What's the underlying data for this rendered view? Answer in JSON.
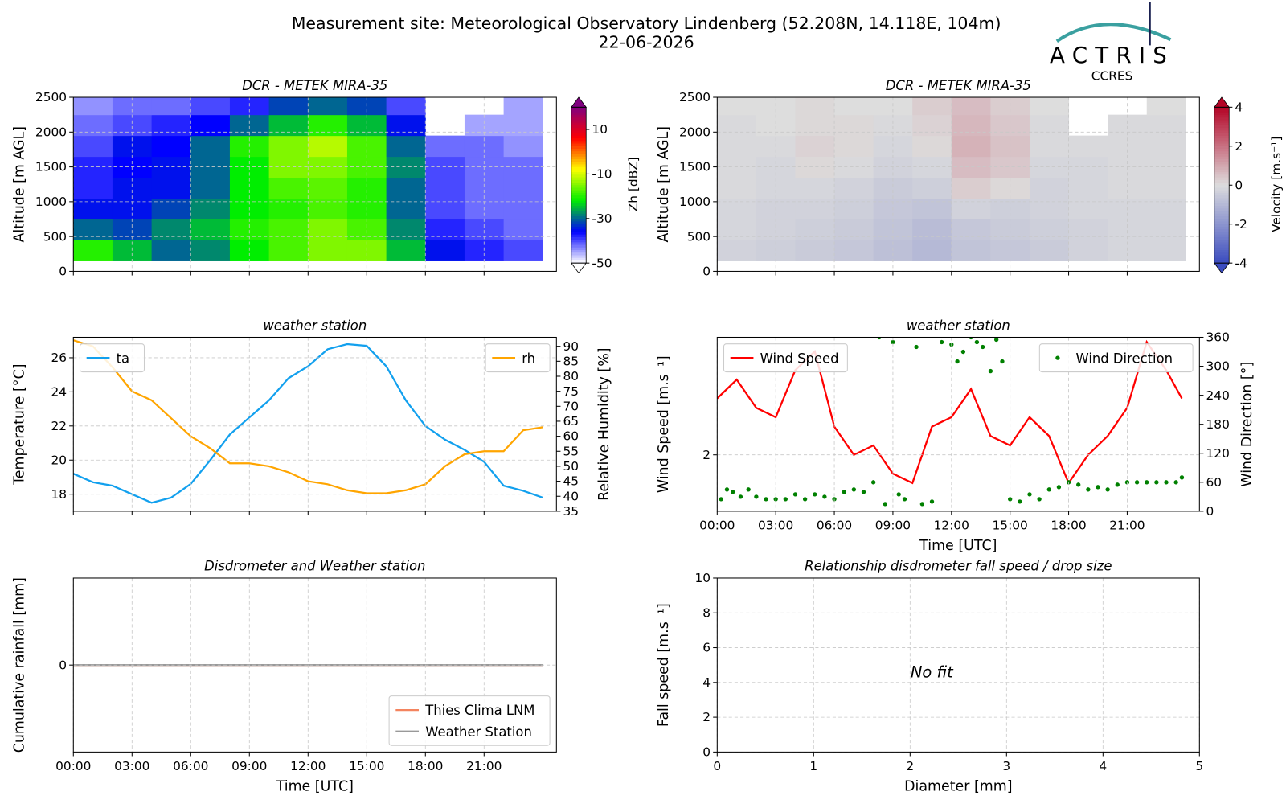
{
  "header": {
    "title": "Measurement site: Meteorological Observatory Lindenberg (52.208N, 14.118E, 104m)",
    "date": "22-06-2026",
    "logo_name": "ACTRIS",
    "logo_sub": "CCRES"
  },
  "chart_data": [
    {
      "type": "heatmap",
      "title": "DCR - METEK MIRA-35",
      "y_label": "Altitude [m AGL]",
      "xlim": [
        0,
        24.7
      ],
      "xticks": [
        0,
        3,
        6,
        9,
        12,
        15,
        18,
        21
      ],
      "xtick_labels": false,
      "ylim": [
        0,
        2500
      ],
      "yticks": [
        0,
        500,
        1000,
        1500,
        2000,
        2500
      ],
      "grid": true,
      "x_edges": [
        0,
        2,
        4,
        6,
        8,
        10,
        12,
        14,
        16,
        18,
        20,
        22,
        24
      ],
      "y_edges": [
        150,
        450,
        750,
        1050,
        1350,
        1650,
        1950,
        2250,
        2500
      ],
      "z": [
        [
          -20,
          -25,
          -30,
          -28,
          -22,
          -18,
          -15,
          -15,
          -25,
          -35,
          -38,
          -40
        ],
        [
          -30,
          -32,
          -28,
          -25,
          -20,
          -18,
          -15,
          -18,
          -28,
          -38,
          -40,
          -42
        ],
        [
          -35,
          -35,
          -32,
          -28,
          -22,
          -20,
          -18,
          -20,
          -30,
          -40,
          -42,
          -42
        ],
        [
          -38,
          -35,
          -35,
          -30,
          -22,
          -18,
          -17,
          -20,
          -30,
          -40,
          -42,
          -42
        ],
        [
          -38,
          -36,
          -35,
          -30,
          -22,
          -15,
          -15,
          -18,
          -28,
          -40,
          -42,
          -42
        ],
        [
          -40,
          -35,
          -36,
          -30,
          -20,
          -15,
          -12,
          -18,
          -30,
          -42,
          -42,
          -44
        ],
        [
          -42,
          -40,
          -38,
          -36,
          -30,
          -25,
          -20,
          -25,
          -35,
          null,
          -45,
          -45
        ],
        [
          -44,
          -42,
          -42,
          -40,
          -38,
          -32,
          -30,
          -32,
          -40,
          null,
          null,
          -45
        ]
      ],
      "clim": [
        -50,
        20
      ],
      "cticks": [
        -50,
        -30,
        -10,
        10
      ],
      "colorbar_label": "Zh [dBZ]",
      "colormap": [
        "#ffffff",
        "#0000ff",
        "#00ee00",
        "#ffff00",
        "#ff0000",
        "#800080"
      ]
    },
    {
      "type": "heatmap",
      "title": "DCR - METEK MIRA-35",
      "y_label": "Altitude [m AGL]",
      "xlim": [
        0,
        24.7
      ],
      "xticks": [
        0,
        3,
        6,
        9,
        12,
        15,
        18,
        21
      ],
      "xtick_labels": false,
      "ylim": [
        0,
        2500
      ],
      "yticks": [
        0,
        500,
        1000,
        1500,
        2000,
        2500
      ],
      "grid": true,
      "x_edges": [
        0,
        2,
        4,
        6,
        8,
        10,
        12,
        14,
        16,
        18,
        20,
        22,
        24
      ],
      "y_edges": [
        150,
        450,
        750,
        1050,
        1350,
        1650,
        1950,
        2250,
        2500
      ],
      "z": [
        [
          -0.3,
          -0.4,
          -0.5,
          -0.6,
          -0.8,
          -1.0,
          -0.7,
          -0.6,
          -0.5,
          -0.3,
          -0.2,
          -0.2
        ],
        [
          -0.2,
          -0.3,
          -0.4,
          -0.5,
          -0.7,
          -0.9,
          -0.6,
          -0.5,
          -0.4,
          -0.3,
          -0.2,
          -0.2
        ],
        [
          -0.2,
          -0.3,
          -0.3,
          -0.4,
          -0.6,
          -0.7,
          -0.3,
          -0.4,
          -0.3,
          -0.2,
          -0.2,
          -0.2
        ],
        [
          -0.1,
          -0.2,
          -0.2,
          -0.3,
          -0.5,
          -0.4,
          0.3,
          0.1,
          -0.3,
          -0.2,
          -0.1,
          -0.1
        ],
        [
          -0.1,
          -0.2,
          0.1,
          -0.1,
          -0.3,
          -0.2,
          0.6,
          0.4,
          -0.2,
          -0.2,
          -0.1,
          -0.1
        ],
        [
          -0.1,
          -0.1,
          0.2,
          0.1,
          -0.2,
          0.1,
          0.8,
          0.5,
          -0.1,
          -0.1,
          -0.1,
          -0.1
        ],
        [
          -0.1,
          0.0,
          0.1,
          0.1,
          -0.1,
          0.2,
          0.7,
          0.4,
          -0.1,
          null,
          -0.1,
          -0.1
        ],
        [
          0.0,
          0.0,
          0.1,
          0.0,
          0.0,
          0.3,
          0.6,
          0.3,
          0.0,
          null,
          null,
          0.0
        ]
      ],
      "clim": [
        -4,
        4
      ],
      "cticks": [
        -4,
        -2,
        0,
        2,
        4
      ],
      "colorbar_label": "Velocity [m.s⁻¹]",
      "colormap": [
        "#3b4cc0",
        "#dddddd",
        "#b40426"
      ]
    },
    {
      "type": "line",
      "title": "weather station",
      "y_label": "Temperature [°C]",
      "y2_label": "Relative Humidity [%]",
      "xlim": [
        0,
        24.7
      ],
      "xticks": [
        0,
        3,
        6,
        9,
        12,
        15,
        18,
        21
      ],
      "xtick_labels": false,
      "ylim": [
        17,
        27.2
      ],
      "yticks": [
        18,
        20,
        22,
        24,
        26
      ],
      "y2lim": [
        35,
        93
      ],
      "y2ticks": [
        35,
        40,
        45,
        50,
        55,
        60,
        65,
        70,
        75,
        80,
        85,
        90
      ],
      "grid": true,
      "x": [
        0,
        1,
        2,
        3,
        4,
        5,
        6,
        7,
        8,
        9,
        10,
        11,
        12,
        13,
        14,
        15,
        16,
        17,
        18,
        19,
        20,
        21,
        22,
        23,
        24
      ],
      "series": [
        {
          "name": "ta",
          "color": "#12a0ee",
          "legend": "upper left",
          "values": [
            19.2,
            18.7,
            18.5,
            18.0,
            17.5,
            17.8,
            18.6,
            20.0,
            21.5,
            22.5,
            23.5,
            24.8,
            25.5,
            26.5,
            26.8,
            26.7,
            25.5,
            23.5,
            22.0,
            21.2,
            20.6,
            19.9,
            18.5,
            18.2,
            17.8
          ]
        },
        {
          "name": "rh",
          "color": "#ffa500",
          "axis": "y2",
          "legend": "upper right",
          "values": [
            92,
            90,
            83,
            75,
            72,
            66,
            60,
            56,
            51,
            51,
            50,
            48,
            45,
            44,
            42,
            41,
            41,
            42,
            44,
            50,
            54,
            55,
            55,
            62,
            63
          ]
        }
      ]
    },
    {
      "type": "line",
      "title": "weather station",
      "y_label": "Wind Speed [m.s⁻¹]",
      "y2_label": "Wind Direction [°]",
      "x_label": "Time [UTC]",
      "xlim": [
        0,
        24.7
      ],
      "xticks": [
        {
          "value": 0,
          "label": "00:00"
        },
        {
          "value": 3,
          "label": "03:00"
        },
        {
          "value": 6,
          "label": "06:00"
        },
        {
          "value": 9,
          "label": "09:00"
        },
        {
          "value": 12,
          "label": "12:00"
        },
        {
          "value": 15,
          "label": "15:00"
        },
        {
          "value": 18,
          "label": "18:00"
        },
        {
          "value": 21,
          "label": "21:00"
        }
      ],
      "ylim": [
        1.4,
        3.25
      ],
      "yticks": [
        2
      ],
      "y2lim": [
        0,
        360
      ],
      "y2ticks": [
        0,
        60,
        120,
        180,
        240,
        300,
        360
      ],
      "grid": true,
      "series": [
        {
          "name": "Wind Speed",
          "color": "#ff0000",
          "legend": "upper left",
          "x": [
            0,
            1,
            2,
            3,
            4,
            5,
            6,
            7,
            8,
            9,
            10,
            11,
            12,
            13,
            14,
            15,
            16,
            17,
            18,
            19,
            20,
            21,
            22,
            23,
            23.8
          ],
          "values": [
            2.6,
            2.8,
            2.5,
            2.4,
            2.9,
            3.1,
            2.3,
            2.0,
            2.1,
            1.8,
            1.7,
            2.3,
            2.4,
            2.7,
            2.2,
            2.1,
            2.4,
            2.2,
            1.7,
            2.0,
            2.2,
            2.5,
            3.2,
            2.9,
            2.6
          ]
        },
        {
          "name": "Wind Direction",
          "color": "#008000",
          "axis": "y2",
          "type": "scatter",
          "legend": "upper right",
          "x": [
            0.2,
            0.5,
            0.8,
            1.2,
            1.6,
            2.0,
            2.5,
            3.0,
            3.5,
            4.0,
            4.5,
            5.0,
            5.5,
            6.0,
            6.5,
            7.0,
            7.5,
            8.0,
            8.3,
            8.6,
            9.0,
            9.3,
            9.6,
            10.2,
            10.5,
            11.0,
            11.5,
            12.0,
            12.3,
            12.6,
            13.0,
            13.3,
            13.6,
            14.0,
            14.3,
            14.6,
            15.0,
            15.5,
            16.0,
            16.5,
            17.0,
            17.5,
            18.0,
            18.5,
            19.0,
            19.5,
            20.0,
            20.5,
            21.0,
            21.5,
            22.0,
            22.5,
            23.0,
            23.5,
            23.8
          ],
          "values": [
            25,
            45,
            40,
            30,
            45,
            30,
            25,
            25,
            25,
            35,
            25,
            35,
            30,
            25,
            40,
            45,
            40,
            60,
            360,
            15,
            350,
            35,
            25,
            340,
            15,
            20,
            350,
            345,
            310,
            330,
            360,
            350,
            340,
            290,
            355,
            310,
            25,
            20,
            35,
            25,
            45,
            50,
            60,
            55,
            45,
            50,
            45,
            55,
            60,
            60,
            60,
            60,
            60,
            60,
            70
          ]
        }
      ]
    },
    {
      "type": "line",
      "title": "Disdrometer and Weather station",
      "y_label": "Cumulative rainfall [mm]",
      "x_label": "Time [UTC]",
      "xlim": [
        0,
        24.7
      ],
      "xticks": [
        {
          "value": 0,
          "label": "00:00"
        },
        {
          "value": 3,
          "label": "03:00"
        },
        {
          "value": 6,
          "label": "06:00"
        },
        {
          "value": 9,
          "label": "09:00"
        },
        {
          "value": 12,
          "label": "12:00"
        },
        {
          "value": 15,
          "label": "15:00"
        },
        {
          "value": 18,
          "label": "18:00"
        },
        {
          "value": 21,
          "label": "21:00"
        }
      ],
      "ylim": [
        -1,
        1
      ],
      "yticks": [
        0
      ],
      "grid": true,
      "legend": "lower right",
      "x": [
        0,
        24
      ],
      "series": [
        {
          "name": "Thies Clima LNM",
          "color": "#f4845f",
          "values": [
            0,
            0
          ]
        },
        {
          "name": "Weather Station",
          "color": "#999999",
          "values": [
            0,
            0
          ]
        }
      ]
    },
    {
      "type": "scatter",
      "title": "Relationship disdrometer fall speed / drop size",
      "y_label": "Fall speed [m.s⁻¹]",
      "x_label": "Diameter [mm]",
      "xlim": [
        0,
        5
      ],
      "xticks": [
        0,
        1,
        2,
        3,
        4,
        5
      ],
      "ylim": [
        0,
        10
      ],
      "yticks": [
        0,
        2,
        4,
        6,
        8,
        10
      ],
      "grid": true,
      "annotation": "No fit"
    }
  ]
}
